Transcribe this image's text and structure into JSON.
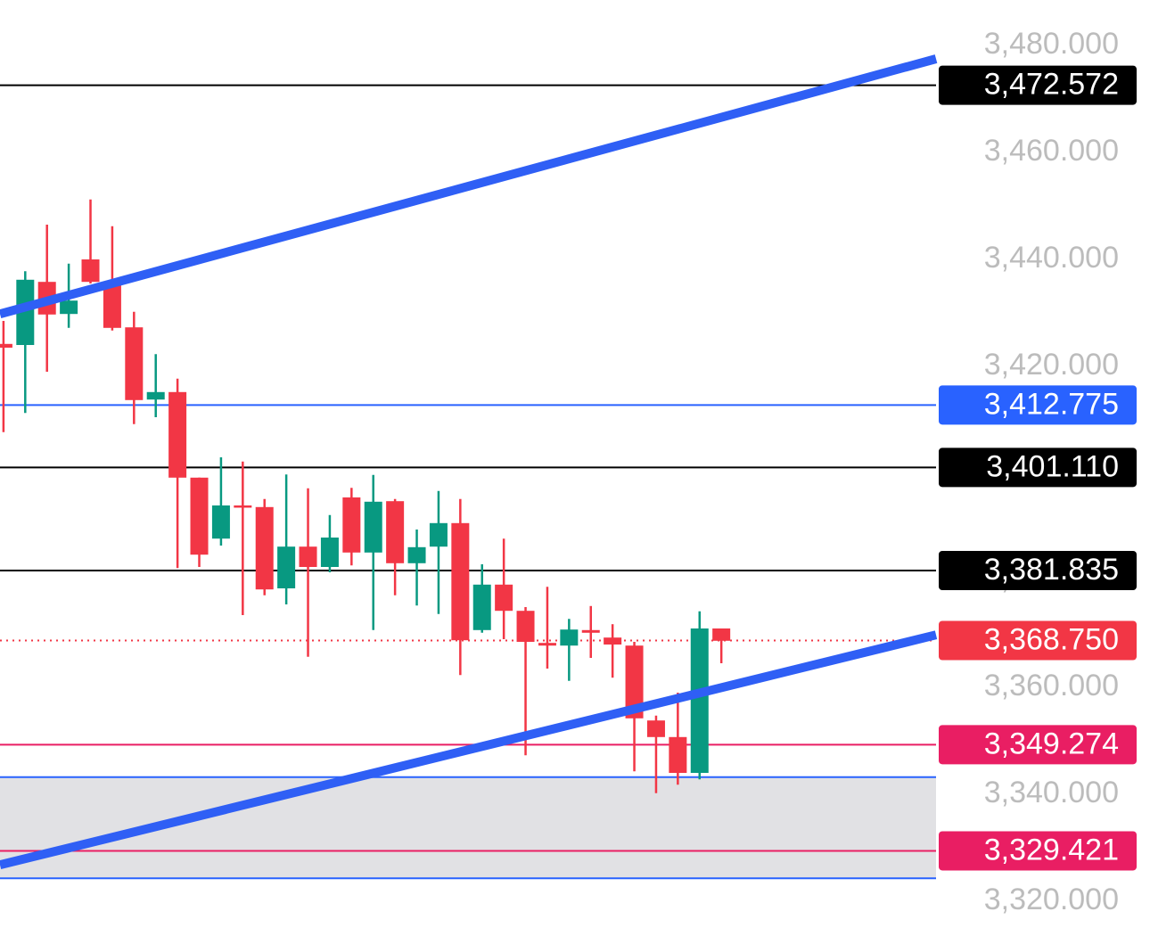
{
  "chart_data": {
    "type": "candlestick",
    "ylim": [
      3315,
      3488.5
    ],
    "xlim": [
      -0.16,
      42.87
    ],
    "yticks": [
      {
        "value": 3320,
        "label": "3,320.000"
      },
      {
        "value": 3340,
        "label": "3,340.000"
      },
      {
        "value": 3360,
        "label": "3,360.000"
      },
      {
        "value": 3380,
        "label": "3,380.000"
      },
      {
        "value": 3400,
        "label": "3,400.000"
      },
      {
        "value": 3420,
        "label": "3,420.000"
      },
      {
        "value": 3440,
        "label": "3,440.000"
      },
      {
        "value": 3460,
        "label": "3,460.000"
      },
      {
        "value": 3480,
        "label": "3,480.000"
      }
    ],
    "up_color": "#089981",
    "down_color": "#f23645",
    "open": [
      3424.2,
      3424.0,
      3435.8,
      3429.8,
      3440.0,
      3435.8,
      3427.3,
      3413.8,
      3415.2,
      3399.2,
      3387.8,
      3394.0,
      3393.7,
      3378.5,
      3386.3,
      3382.5,
      3395.5,
      3385.2,
      3394.8,
      3383.2,
      3386.3,
      3390.7,
      3370.7,
      3379.2,
      3374.3,
      3368.3,
      3367.8,
      3370.7,
      3369.3,
      3367.8,
      3353.8,
      3350.7,
      3344.0,
      3371.0
    ],
    "high": [
      3428.5,
      3437.8,
      3446.5,
      3439.2,
      3451.2,
      3446.2,
      3430.2,
      3422.3,
      3417.7,
      3399.2,
      3403.0,
      3402.2,
      3395.2,
      3399.8,
      3397.2,
      3392.2,
      3397.3,
      3399.7,
      3395.2,
      3389.5,
      3396.7,
      3395.2,
      3383.0,
      3387.8,
      3375.0,
      3378.8,
      3372.8,
      3375.2,
      3371.8,
      3368.5,
      3354.7,
      3359.0,
      3374.2,
      3371.0
    ],
    "low": [
      3407.7,
      3411.3,
      3419.0,
      3427.2,
      3435.5,
      3426.7,
      3409.2,
      3410.5,
      3382.3,
      3382.5,
      3386.5,
      3373.5,
      3377.2,
      3375.5,
      3365.7,
      3381.5,
      3382.8,
      3370.7,
      3377.2,
      3375.3,
      3373.7,
      3362.3,
      3370.2,
      3369.0,
      3347.3,
      3363.5,
      3361.2,
      3365.5,
      3361.8,
      3344.3,
      3340.2,
      3341.8,
      3342.8,
      3364.5
    ],
    "close": [
      3423.5,
      3436.2,
      3429.7,
      3432.3,
      3435.8,
      3427.2,
      3413.7,
      3415.2,
      3399.2,
      3384.8,
      3394.0,
      3393.7,
      3378.3,
      3386.3,
      3382.5,
      3388.0,
      3385.2,
      3394.7,
      3383.2,
      3386.2,
      3390.7,
      3368.8,
      3379.2,
      3374.3,
      3368.5,
      3367.8,
      3370.8,
      3370.2,
      3368.0,
      3354.2,
      3350.7,
      3344.0,
      3371.0,
      3368.7
    ],
    "zone": {
      "y": [
        3324.3,
        3343.2
      ],
      "color": "#e1e1e4",
      "border_color": "#2962ff"
    },
    "trendlines": [
      {
        "x": [
          -0.16,
          42.87
        ],
        "y": [
          3429.8,
          3477.5
        ],
        "color": "#2f5ff5"
      },
      {
        "x": [
          -0.16,
          42.87
        ],
        "y": [
          3326.8,
          3369.8
        ],
        "color": "#2f5ff5"
      }
    ],
    "price_lines": [
      {
        "value": 3472.572,
        "label": "3,472.572",
        "color": "#000000",
        "style": "solid"
      },
      {
        "value": 3412.775,
        "label": "3,412.775",
        "color": "#2962ff",
        "style": "solid"
      },
      {
        "value": 3401.11,
        "label": "3,401.110",
        "color": "#000000",
        "style": "solid"
      },
      {
        "value": 3381.835,
        "label": "3,381.835",
        "color": "#000000",
        "style": "solid"
      },
      {
        "value": 3368.75,
        "label": "3,368.750",
        "color": "#f23645",
        "style": "dotted"
      },
      {
        "value": 3349.274,
        "label": "3,349.274",
        "color": "#e91e63",
        "style": "solid"
      },
      {
        "value": 3329.421,
        "label": "3,329.421",
        "color": "#e91e63",
        "style": "solid"
      }
    ]
  }
}
